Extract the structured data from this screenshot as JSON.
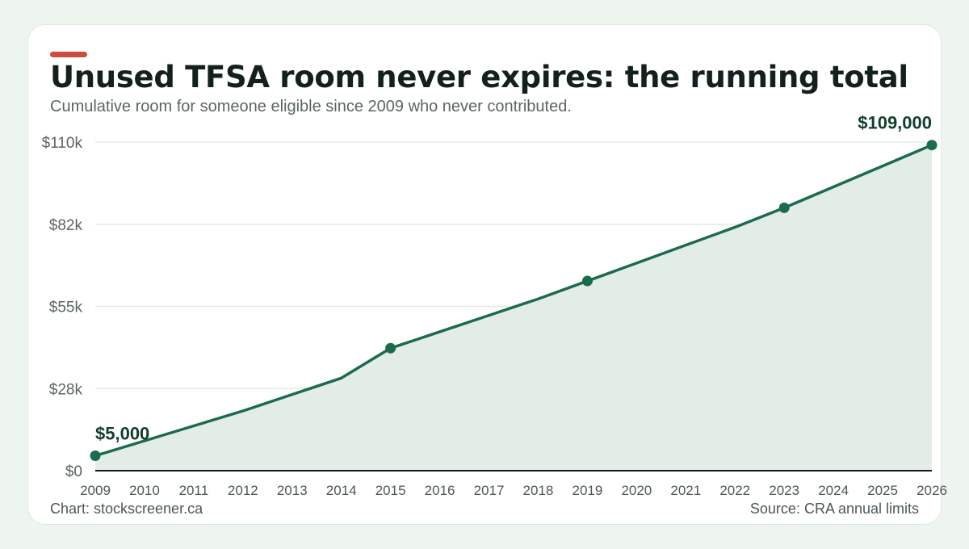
{
  "header": {
    "title": "Unused TFSA room never expires: the running total",
    "subtitle": "Cumulative room for someone eligible since 2009 who never contributed."
  },
  "footer": {
    "credit": "Chart: stockscreener.ca",
    "source": "Source: CRA annual limits"
  },
  "colors": {
    "accent": "#d14b3f",
    "line": "#1c6b4c",
    "area": "#e3ede7",
    "grid": "#e2ebe5",
    "axis": "#1a1a1a"
  },
  "chart_data": {
    "type": "area",
    "x": [
      "2009",
      "2010",
      "2011",
      "2012",
      "2013",
      "2014",
      "2015",
      "2016",
      "2017",
      "2018",
      "2019",
      "2020",
      "2021",
      "2022",
      "2023",
      "2024",
      "2025",
      "2026"
    ],
    "series": [
      {
        "values": [
          5000,
          10000,
          15000,
          20000,
          25500,
          31000,
          41000,
          46500,
          52000,
          57500,
          63500,
          69500,
          75500,
          81500,
          88000,
          95000,
          102000,
          109000
        ]
      }
    ],
    "highlight_points": [
      "2009",
      "2015",
      "2019",
      "2023",
      "2026"
    ],
    "data_labels": [
      {
        "x": "2009",
        "text": "$5,000"
      },
      {
        "x": "2026",
        "text": "$109,000"
      }
    ],
    "y_ticks": [
      {
        "value": 0,
        "label": "$0"
      },
      {
        "value": 27500,
        "label": "$28k"
      },
      {
        "value": 55000,
        "label": "$55k"
      },
      {
        "value": 82500,
        "label": "$82k"
      },
      {
        "value": 110000,
        "label": "$110k"
      }
    ],
    "ylim": [
      0,
      110000
    ],
    "grid": true,
    "legend": "none"
  }
}
